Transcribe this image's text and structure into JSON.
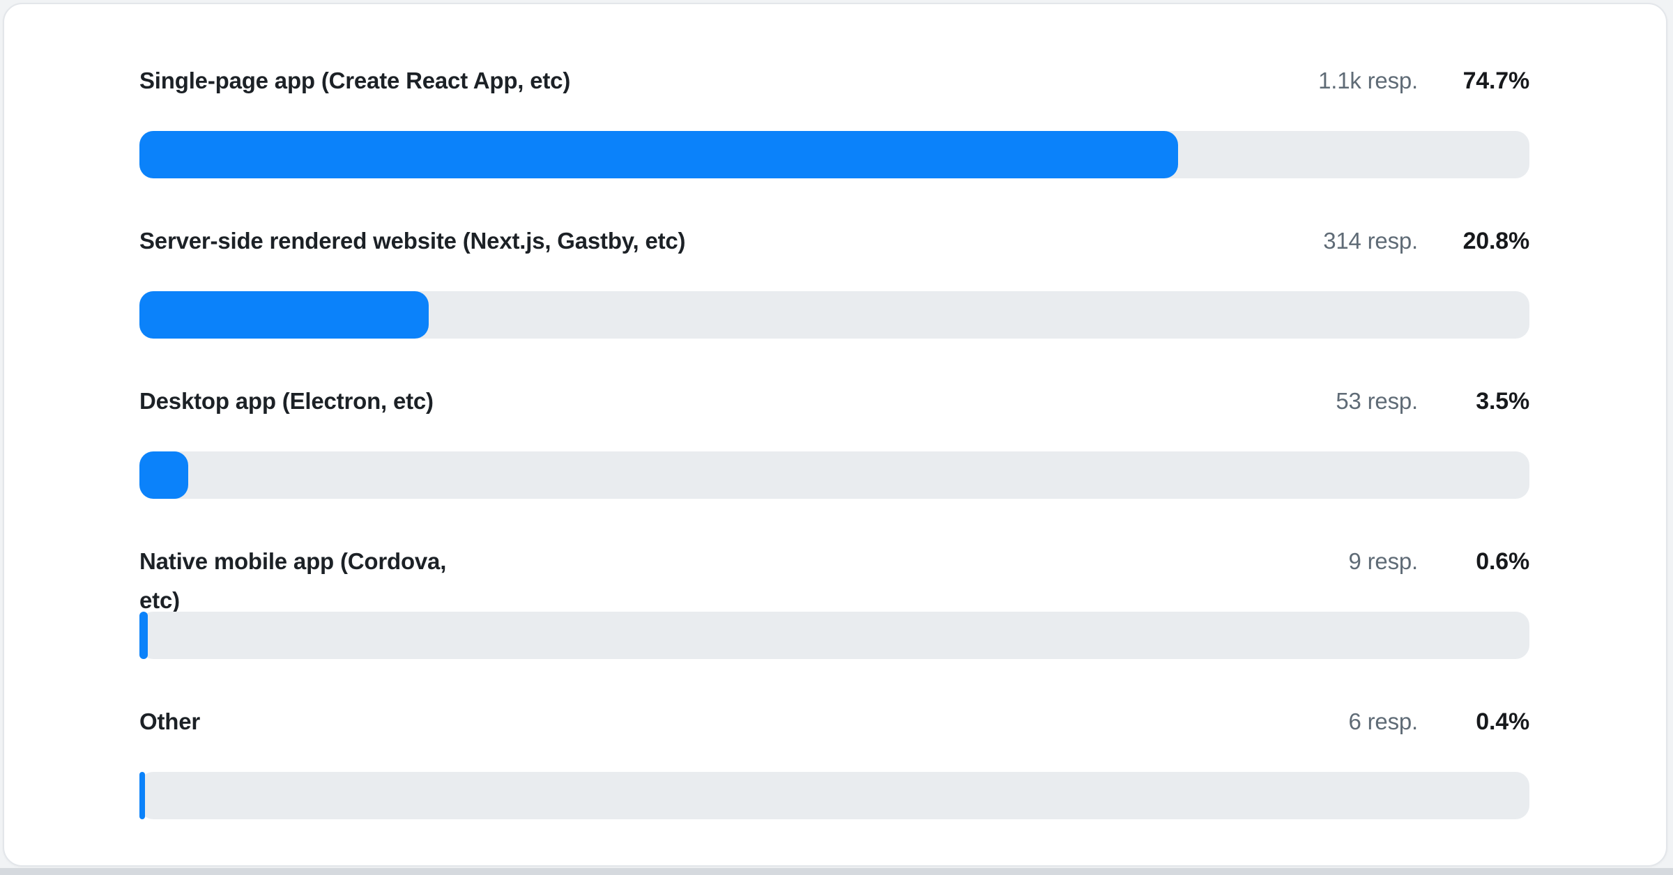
{
  "colors": {
    "accent": "#0b82fa",
    "track": "#e9ecef",
    "label_text": "#1c2126",
    "responses_text": "#5f6b76",
    "percent_text": "#17191c",
    "card_background": "#ffffff",
    "card_border": "#e3e6ea",
    "bottom_strip": "#d5d9de"
  },
  "rows": [
    {
      "label": "Single-page app (Create React App, etc)",
      "responses": "1.1k resp.",
      "percent": "74.7%",
      "value": 74.7
    },
    {
      "label": "Server-side rendered website (Next.js, Gastby, etc)",
      "responses": "314 resp.",
      "percent": "20.8%",
      "value": 20.8
    },
    {
      "label": "Desktop app (Electron, etc)",
      "responses": "53 resp.",
      "percent": "3.5%",
      "value": 3.5
    },
    {
      "label": "Native mobile app (Cordova,\netc)",
      "responses": "9 resp.",
      "percent": "0.6%",
      "value": 0.6
    },
    {
      "label": "Other",
      "responses": "6 resp.",
      "percent": "0.4%",
      "value": 0.4
    }
  ],
  "chart_data": {
    "type": "bar",
    "orientation": "horizontal",
    "title": "",
    "categories": [
      "Single-page app (Create React App, etc)",
      "Server-side rendered website (Next.js, Gastby, etc)",
      "Desktop app (Electron, etc)",
      "Native mobile app (Cordova, etc)",
      "Other"
    ],
    "values": [
      74.7,
      20.8,
      3.5,
      0.6,
      0.4
    ],
    "value_labels": [
      "74.7%",
      "20.8%",
      "3.5%",
      "0.6%",
      "0.4%"
    ],
    "response_counts": [
      "1.1k resp.",
      "314 resp.",
      "53 resp.",
      "9 resp.",
      "6 resp."
    ],
    "xlabel": "",
    "ylabel": "",
    "xlim": [
      0,
      100
    ],
    "grid": false,
    "legend": false,
    "bar_color": "#0b82fa",
    "track_color": "#e9ecef"
  }
}
